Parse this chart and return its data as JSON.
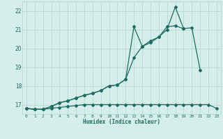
{
  "xlabel": "Humidex (Indice chaleur)",
  "x": [
    0,
    1,
    2,
    3,
    4,
    5,
    6,
    7,
    8,
    9,
    10,
    11,
    12,
    13,
    14,
    15,
    16,
    17,
    18,
    19,
    20,
    21,
    22,
    23
  ],
  "line1": [
    16.8,
    16.75,
    16.75,
    16.8,
    16.85,
    16.9,
    16.95,
    17.0,
    17.0,
    17.0,
    17.0,
    17.0,
    17.0,
    17.0,
    17.0,
    17.0,
    17.0,
    17.0,
    17.0,
    17.0,
    17.0,
    17.0,
    17.0,
    16.8
  ],
  "line2": [
    16.8,
    16.75,
    16.75,
    16.9,
    17.1,
    17.2,
    17.35,
    17.5,
    17.6,
    17.75,
    18.0,
    18.05,
    18.35,
    21.15,
    20.1,
    20.3,
    20.6,
    21.0,
    22.2,
    21.05,
    null,
    null,
    null,
    null
  ],
  "line3": [
    16.8,
    16.75,
    16.75,
    16.9,
    17.1,
    17.2,
    17.35,
    17.5,
    17.6,
    17.75,
    18.0,
    18.05,
    18.35,
    19.5,
    20.1,
    20.4,
    20.6,
    21.15,
    21.2,
    21.05,
    21.1,
    18.85,
    null,
    null
  ],
  "color": "#1f6b62",
  "bg_color": "#d4eeea",
  "grid_color": "#b2d4cf",
  "ylim": [
    16.5,
    22.5
  ],
  "yticks": [
    17,
    18,
    19,
    20,
    21,
    22
  ],
  "xticks": [
    0,
    1,
    2,
    3,
    4,
    5,
    6,
    7,
    8,
    9,
    10,
    11,
    12,
    13,
    14,
    15,
    16,
    17,
    18,
    19,
    20,
    21,
    22,
    23
  ],
  "marker": "D",
  "markersize": 2.0,
  "linewidth": 0.9
}
